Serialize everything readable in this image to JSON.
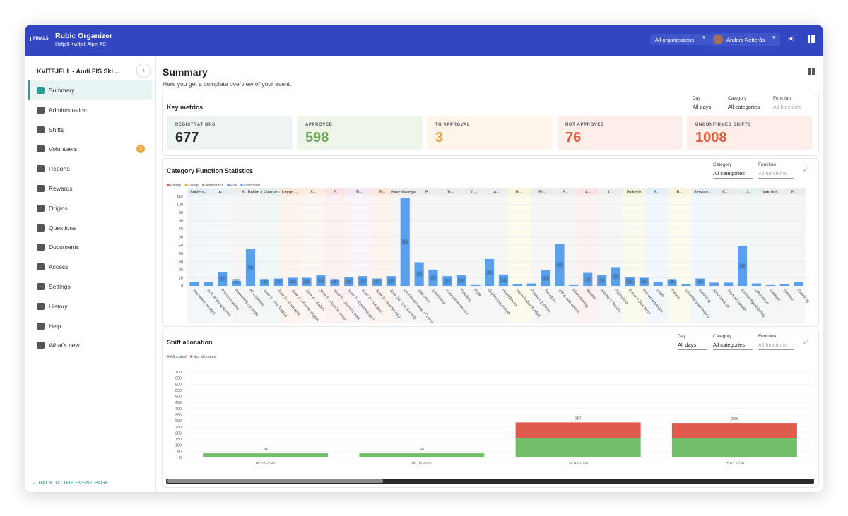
{
  "header": {
    "logo": "FINALS",
    "app": "Rubic Organizer",
    "org": "Hafjell-Kvitfjell Alpin AS",
    "org_select": "All organizations",
    "user": "Anders Retterås"
  },
  "sidebar": {
    "event": "KVITFJELL - Audi FIS Ski ...",
    "items": [
      "Summary",
      "Administration",
      "Shifts",
      "Volunteers",
      "Reports",
      "Rewards",
      "Origins",
      "Questions",
      "Documents",
      "Access",
      "Settings",
      "History",
      "Help",
      "What's new"
    ],
    "badge": "3",
    "back": "BACK TO THE EVENT PAGE"
  },
  "page": {
    "title": "Summary",
    "subtitle": "Here you get a complete overview of your event."
  },
  "key_metrics": {
    "title": "Key metrics",
    "filters": [
      {
        "label": "Day",
        "value": "All days"
      },
      {
        "label": "Category",
        "value": "All categories"
      },
      {
        "label": "Function",
        "value": "All functions"
      }
    ],
    "cards": [
      {
        "label": "REGISTRATIONS",
        "value": 677
      },
      {
        "label": "APPROVED",
        "value": 598
      },
      {
        "label": "TO APPROVAL",
        "value": 3
      },
      {
        "label": "NOT APPROVED",
        "value": 76
      },
      {
        "label": "UNCONFIRMED SHIFTS",
        "value": 1008
      }
    ]
  },
  "category_filters": [
    {
      "label": "Category",
      "value": "All categories"
    },
    {
      "label": "Function",
      "value": "All functions"
    }
  ],
  "shift_filters": [
    {
      "label": "Day",
      "value": "All days"
    },
    {
      "label": "Category",
      "value": "All categories"
    },
    {
      "label": "Function",
      "value": "All functions"
    }
  ],
  "chart_data": [
    {
      "type": "bar",
      "title": "Category Function Statistics",
      "legend": [
        {
          "name": "Plenty",
          "color": "#e05a4e"
        },
        {
          "name": "Filling",
          "color": "#f0a640"
        },
        {
          "name": "Almost full",
          "color": "#72bf6a"
        },
        {
          "name": "Full",
          "color": "#5aa0ea"
        },
        {
          "name": "Unlimited",
          "color": "#5aa0ea"
        }
      ],
      "groups": [
        {
          "name": "SoMe o...",
          "color": "#e3eef8"
        },
        {
          "name": "A...",
          "color": "#e8f0f7"
        },
        {
          "name": "B...",
          "color": "#ececec"
        },
        {
          "name": "Bakke // Course crew",
          "color": "#e3f0ef"
        },
        {
          "name": "Løype /...",
          "color": "#fbe6d9"
        },
        {
          "name": "S...",
          "color": "#fbeee0"
        },
        {
          "name": "F...",
          "color": "#fbe3e3"
        },
        {
          "name": "Ti...",
          "color": "#f1e8f4"
        },
        {
          "name": "R...",
          "color": "#fbe6d9"
        },
        {
          "name": "Hovedkatego...",
          "color": "#ececec"
        },
        {
          "name": "P...",
          "color": "#ececec"
        },
        {
          "name": "Tr...",
          "color": "#ececec"
        },
        {
          "name": "Vl...",
          "color": "#ececec"
        },
        {
          "name": "A...",
          "color": "#ececec"
        },
        {
          "name": "Bi...",
          "color": "#fbf3d9"
        },
        {
          "name": "Bl...",
          "color": "#ececec"
        },
        {
          "name": "P...",
          "color": "#ececec"
        },
        {
          "name": "A...",
          "color": "#fbe3e3"
        },
        {
          "name": "L...",
          "color": "#ececec"
        },
        {
          "name": "Folkeliv",
          "color": "#f3f4d9"
        },
        {
          "name": "S...",
          "color": "#e3eef8"
        },
        {
          "name": "B...",
          "color": "#fbf3d9"
        },
        {
          "name": "Service...",
          "color": "#e3eef8"
        },
        {
          "name": "K...",
          "color": "#ececec"
        },
        {
          "name": "U...",
          "color": "#e3f0ef"
        },
        {
          "name": "Vakthol...",
          "color": "#ececec"
        },
        {
          "name": "P...",
          "color": "#ececec"
        }
      ],
      "categories": [
        "Heysiktsen Kvitfjell",
        "Innkvarteringskontor",
        "Arenaansvarlig",
        "Bakkeslag og sidge",
        "ATV-sjåfører",
        "Sone 1 - Fra Toppen",
        "Sone 2 - Ørnereiret",
        "Sone 3 - Wonderhogget",
        "Sone 4 - Stallen",
        "Sone 5 - Russisk sving",
        "Sone 6 - Jansens hopp",
        "Sone 7 - Egnarsvingen",
        "Sone 8 - Svingen",
        "Sone 9 - Rovdyrhopp",
        "Sone 10 - Lahol til Mål",
        "Løypemannskap i Course",
        "Vakt crew",
        "Sekretariat",
        "Funksjonærservice",
        "Tidtaking",
        "Rulle",
        "Organisasjonsstab",
        "Hovedkontor",
        "Styret Hafjell Kvitfjell",
        "Presse og media",
        "Transport",
        "VIP & side events",
        "Akkreditering",
        "Billetter",
        "Billetter // Tickets",
        "Påmelding",
        "Arena // Blue team",
        "Arenaproduksjon",
        "Lager",
        "Folkeliv",
        "Sikkerhetsoppfølging",
        "Servering",
        "Servicekontor",
        "Team Hospitality",
        "Kvitfjell Alpinlagsflag",
        "Uteområde",
        "Vakthold",
        "Vaktbod",
        "Parkering"
      ],
      "values": [
        5,
        5,
        17,
        6,
        45,
        8,
        9,
        10,
        10,
        13,
        8,
        11,
        12,
        9,
        12,
        108,
        29,
        20,
        12,
        13,
        1,
        33,
        14,
        2,
        3,
        19,
        52,
        1,
        16,
        13,
        23,
        11,
        10,
        5,
        8,
        2,
        9,
        4,
        4,
        49,
        3,
        1,
        2,
        5
      ],
      "color": "#5aa0ea",
      "ylim": [
        0,
        110
      ],
      "yticks": [
        0,
        10,
        20,
        30,
        40,
        50,
        60,
        70,
        80,
        90,
        100,
        110
      ]
    },
    {
      "type": "stacked_bar",
      "title": "Shift allocation",
      "categories": [
        "05.03.2026",
        "06.03.2026",
        "14.03.2026",
        "15.03.2026"
      ],
      "series": [
        {
          "name": "Allocated",
          "color": "#72bf6a",
          "values": [
            34,
            34,
            162,
            162
          ]
        },
        {
          "name": "Not allocated",
          "color": "#e05a4e",
          "values": [
            0,
            0,
            125,
            121
          ]
        }
      ],
      "totals": [
        34,
        34,
        287,
        283
      ],
      "ylim": [
        0,
        700
      ],
      "yticks": [
        0,
        50,
        100,
        150,
        200,
        250,
        300,
        350,
        400,
        450,
        500,
        550,
        600,
        650,
        700
      ]
    }
  ]
}
